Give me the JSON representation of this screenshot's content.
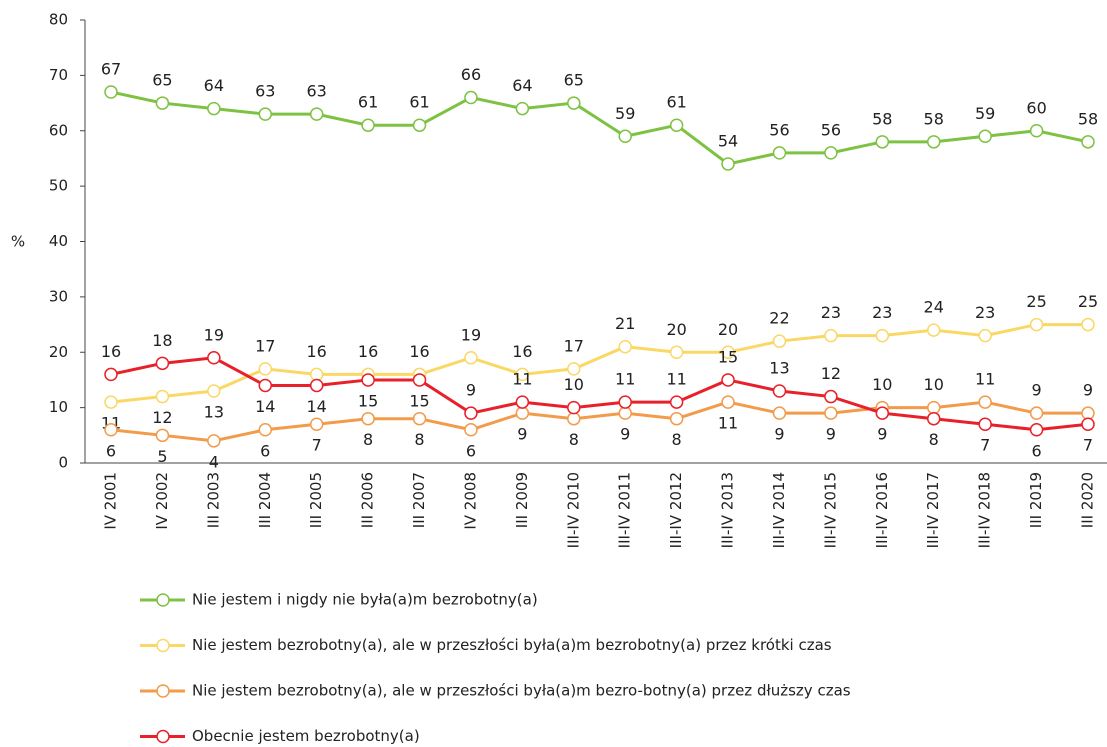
{
  "chart_data": {
    "type": "line",
    "ylabel": "%",
    "categories": [
      "IV 2001",
      "IV 2002",
      "III 2003",
      "III 2004",
      "III 2005",
      "III 2006",
      "III 2007",
      "IV 2008",
      "III 2009",
      "III-IV 2010",
      "III-IV 2011",
      "III-IV 2012",
      "III-IV 2013",
      "III-IV 2014",
      "III-IV 2015",
      "III-IV 2016",
      "III-IV 2017",
      "III-IV 2018",
      "III 2019",
      "III 2020"
    ],
    "series": [
      {
        "name": "Nie jestem i nigdy nie była(a)m bezrobotny(a)",
        "color": "#7dc242",
        "values": [
          67,
          65,
          64,
          63,
          63,
          61,
          61,
          66,
          64,
          65,
          59,
          61,
          54,
          56,
          56,
          58,
          58,
          59,
          60,
          58
        ]
      },
      {
        "name": "Nie jestem bezrobotny(a), ale w przeszłości była(a)m bezrobotny(a) przez krótki czas",
        "color": "#fad866",
        "values": [
          11,
          12,
          13,
          17,
          16,
          16,
          16,
          19,
          16,
          17,
          21,
          20,
          20,
          22,
          23,
          23,
          24,
          23,
          25,
          25
        ]
      },
      {
        "name": "Nie jestem bezrobotny(a), ale w przeszłości była(a)m bezro-botny(a) przez dłuższy czas",
        "color": "#f29b4b",
        "values": [
          6,
          5,
          4,
          6,
          7,
          8,
          8,
          6,
          9,
          8,
          9,
          8,
          11,
          9,
          9,
          10,
          10,
          11,
          9,
          9
        ]
      },
      {
        "name": "Obecnie jestem bezrobotny(a)",
        "color": "#e8202a",
        "values": [
          16,
          18,
          19,
          14,
          14,
          15,
          15,
          9,
          11,
          10,
          11,
          11,
          15,
          13,
          12,
          9,
          8,
          7,
          6,
          7
        ]
      }
    ],
    "ylim": [
      0,
      80
    ],
    "yticks": [
      0,
      10,
      20,
      30,
      40,
      50,
      60,
      70,
      80
    ],
    "grid": false
  }
}
